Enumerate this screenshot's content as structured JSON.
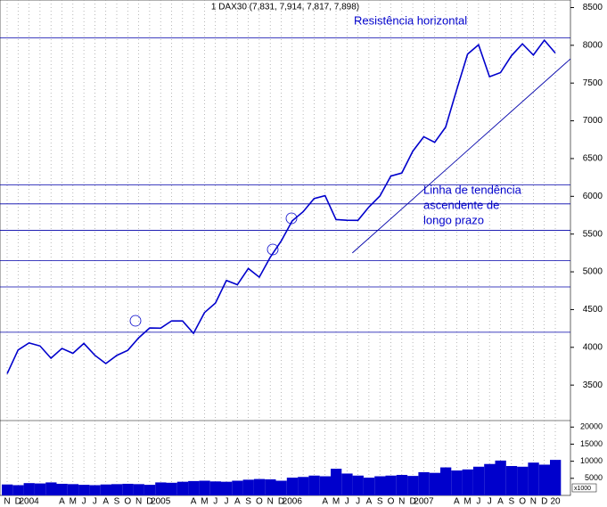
{
  "chart_data": {
    "type": "line",
    "title": "1 DAX30 (7,831, 7,914, 7,817, 7,898)",
    "categories": [
      "N",
      "D",
      "2004",
      null,
      null,
      "A",
      "M",
      "J",
      "J",
      "A",
      "S",
      "O",
      "N",
      "D",
      "2005",
      null,
      null,
      "A",
      "M",
      "J",
      "J",
      "A",
      "S",
      "O",
      "N",
      "D",
      "2006",
      null,
      null,
      "A",
      "M",
      "J",
      "J",
      "A",
      "S",
      "O",
      "N",
      "D",
      "2007",
      null,
      null,
      "A",
      "M",
      "J",
      "J",
      "A",
      "S",
      "O",
      "N",
      "D",
      "20"
    ],
    "series": [
      {
        "name": "DAX30",
        "color": "#0000cc",
        "values": [
          3650,
          3965,
          4058,
          4018,
          3856,
          3985,
          3921,
          4052,
          3895,
          3785,
          3893,
          3960,
          4126,
          4256,
          4254,
          4350,
          4349,
          4185,
          4460,
          4586,
          4886,
          4829,
          5044,
          4929,
          5193,
          5408,
          5674,
          5796,
          5970,
          6009,
          5692,
          5683,
          5682,
          5859,
          6004,
          6268,
          6309,
          6597,
          6789,
          6715,
          6917,
          7409,
          7883,
          8007,
          7584,
          7638,
          7862,
          8019,
          7871,
          8067,
          7898
        ]
      }
    ],
    "volume": {
      "color": "#0000cc",
      "label": "x1000",
      "values": [
        3200,
        3000,
        3600,
        3500,
        3800,
        3400,
        3300,
        3100,
        3000,
        3200,
        3300,
        3400,
        3300,
        3100,
        3800,
        3700,
        4000,
        4200,
        4300,
        4100,
        4000,
        4300,
        4600,
        4800,
        4700,
        4300,
        5200,
        5400,
        5800,
        5600,
        7800,
        6400,
        5800,
        5200,
        5600,
        5800,
        6000,
        5700,
        6800,
        6600,
        8200,
        7300,
        7600,
        8400,
        9200,
        10200,
        8600,
        8400,
        9600,
        9000,
        10400
      ],
      "ylim": [
        0,
        21900
      ],
      "yticks": [
        5000,
        10000,
        15000,
        20000
      ]
    },
    "ylim": [
      3030,
      8600
    ],
    "yticks": [
      3500,
      4000,
      4500,
      5000,
      5500,
      6000,
      6500,
      7000,
      7500,
      8000,
      8500
    ],
    "horizontal_lines": [
      8100,
      6150,
      5900,
      5550,
      5150,
      4800,
      4200
    ],
    "trend_line": [
      5250,
      7820
    ],
    "annotations": [
      "Resistência horizontal",
      "Linha de tendência",
      "ascendente de",
      "longo prazo"
    ],
    "grid": true
  }
}
